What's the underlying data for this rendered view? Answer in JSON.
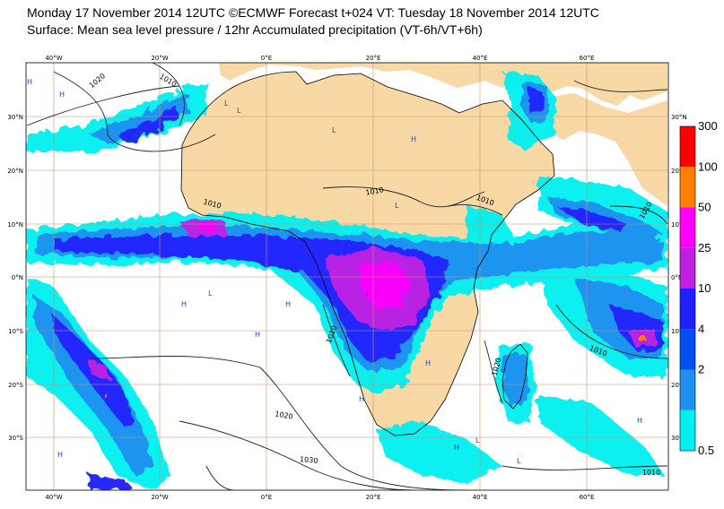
{
  "header": {
    "title_line1": "Monday 17 November 2014 12UTC ©ECMWF Forecast t+024 VT: Tuesday 18 November 2014 12UTC",
    "title_line2": "Surface: Mean sea level pressure / 12hr Accumulated precipitation (VT-6h/VT+6h)"
  },
  "map": {
    "lon_labels": [
      "40°W",
      "20°W",
      "0°E",
      "20°E",
      "40°E",
      "60°E"
    ],
    "lat_labels": [
      "30°N",
      "20°N",
      "10°N",
      "0°N",
      "10°S",
      "20°S",
      "30°S"
    ],
    "isobar_labels": [
      "1020",
      "1010",
      "1010",
      "1010",
      "1010",
      "1010",
      "1010",
      "1010",
      "1020",
      "1020",
      "1030",
      "1010"
    ],
    "pressure_centers": [
      "H",
      "H",
      "L",
      "L",
      "H",
      "L",
      "H",
      "H",
      "L",
      "H",
      "L",
      "H",
      "H",
      "L",
      "H",
      "L",
      "L",
      "H",
      "H"
    ],
    "colors": {
      "ocean": "#ffffff",
      "land": "#f8d8a4",
      "grid": "#c88f6c"
    }
  },
  "colorbar": {
    "levels": [
      "300",
      "100",
      "50",
      "25",
      "10",
      "4",
      "2",
      "0.5"
    ],
    "colors": [
      "#ff0000",
      "#ff8000",
      "#ff00ff",
      "#c020e0",
      "#2020ff",
      "#0050f0",
      "#2090f0",
      "#00f0f0"
    ]
  }
}
